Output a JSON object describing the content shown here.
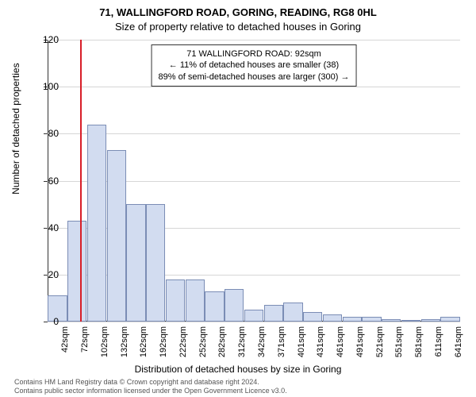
{
  "chart": {
    "type": "histogram",
    "title_main": "71, WALLINGFORD ROAD, GORING, READING, RG8 0HL",
    "title_sub": "Size of property relative to detached houses in Goring",
    "y_label": "Number of detached properties",
    "x_label": "Distribution of detached houses by size in Goring",
    "ylim": [
      0,
      120
    ],
    "ytick_step": 20,
    "bar_color": "#d2dcf0",
    "bar_border": "#7b8db5",
    "grid_color": "#d6d6d6",
    "background_color": "#ffffff",
    "refline_color": "#d81e28",
    "refline_x_index": 2,
    "categories": [
      "42sqm",
      "72sqm",
      "102sqm",
      "132sqm",
      "162sqm",
      "192sqm",
      "222sqm",
      "252sqm",
      "282sqm",
      "312sqm",
      "342sqm",
      "371sqm",
      "401sqm",
      "431sqm",
      "461sqm",
      "491sqm",
      "521sqm",
      "551sqm",
      "581sqm",
      "611sqm",
      "641sqm"
    ],
    "values": [
      11,
      43,
      84,
      73,
      50,
      50,
      18,
      18,
      13,
      14,
      5,
      7,
      8,
      4,
      3,
      2,
      2,
      1,
      0,
      1,
      2
    ],
    "info_box": {
      "line1": "71 WALLINGFORD ROAD: 92sqm",
      "line2": "← 11% of detached houses are smaller (38)",
      "line3": "89% of semi-detached houses are larger (300) →"
    },
    "footer": {
      "line1": "Contains HM Land Registry data © Crown copyright and database right 2024.",
      "line2": "Contains public sector information licensed under the Open Government Licence v3.0."
    }
  }
}
